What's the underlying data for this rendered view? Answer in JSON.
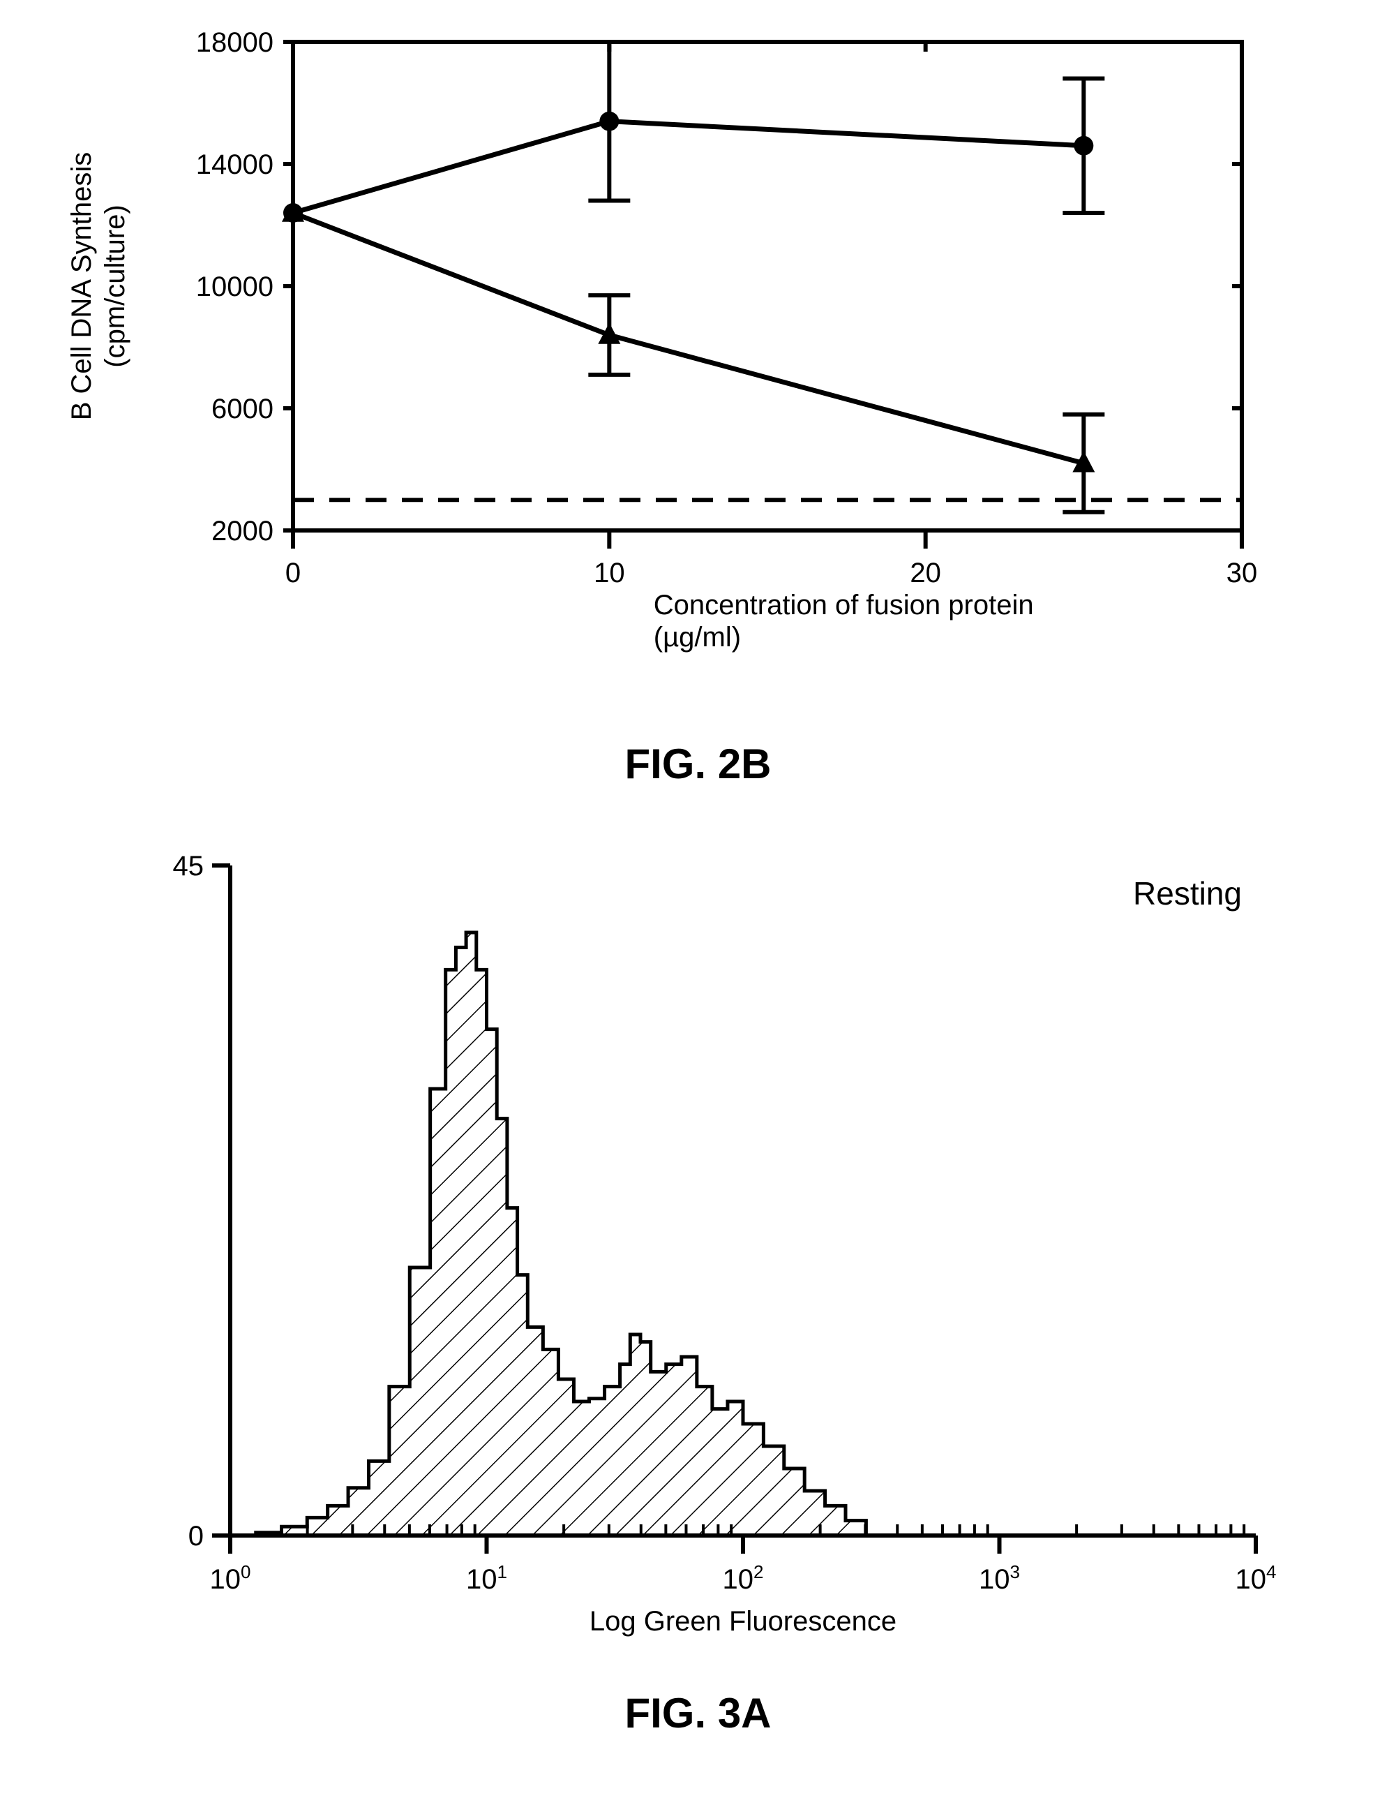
{
  "fig2b": {
    "type": "line-errorbar",
    "title": "FIG. 2B",
    "title_fontsize": 60,
    "title_fontweight": 700,
    "xlabel_line1": "Concentration of fusion protein",
    "xlabel_line2": "(µg/ml)",
    "ylabel_line1": "B Cell DNA Synthesis",
    "ylabel_line2": "(cpm/culture)",
    "label_fontsize": 40,
    "tick_fontsize": 40,
    "axis_color": "#000000",
    "axis_width": 6,
    "tick_len_major": 26,
    "tick_len_small": 14,
    "xlim": [
      0,
      30
    ],
    "ylim": [
      2000,
      18000
    ],
    "xticks": [
      0,
      10,
      20,
      30
    ],
    "yticks_major": [
      2000,
      6000,
      10000,
      14000,
      18000
    ],
    "yticks_label_only": [
      6000,
      10000,
      14000,
      18000
    ],
    "dashed_ref_y": 3000,
    "dashed_dash": "30 22",
    "dashed_width": 6,
    "line_width": 7,
    "line_color": "#000000",
    "series_circle": {
      "marker": "circle",
      "marker_size": 14,
      "points": [
        {
          "x": 0,
          "y": 12400,
          "err": 0
        },
        {
          "x": 10,
          "y": 15400,
          "err": 2600
        },
        {
          "x": 25,
          "y": 14600,
          "err": 2200
        }
      ]
    },
    "series_triangle": {
      "marker": "triangle",
      "marker_size": 16,
      "points": [
        {
          "x": 0,
          "y": 12400,
          "err": 0
        },
        {
          "x": 10,
          "y": 8400,
          "err": 1300
        },
        {
          "x": 25,
          "y": 4200,
          "err": 1600
        }
      ]
    },
    "errorbar_cap": 30,
    "errorbar_width": 6
  },
  "fig3a": {
    "type": "histogram-log-x",
    "title": "FIG. 3A",
    "title_fontsize": 60,
    "title_fontweight": 700,
    "panel_label": "Resting",
    "panel_label_fontsize": 46,
    "xlabel": "Log Green Fluorescence",
    "label_fontsize": 40,
    "tick_fontsize": 40,
    "axis_color": "#000000",
    "axis_width": 6,
    "ylim": [
      0,
      45
    ],
    "yticks": [
      0,
      45
    ],
    "x_decades": [
      0,
      1,
      2,
      3,
      4
    ],
    "xticks_label_prefix": "10",
    "log_minor_ticks": [
      2,
      3,
      4,
      5,
      6,
      7,
      8,
      9
    ],
    "tick_len_major": 26,
    "tick_len_minor_in": 16,
    "hatch_spacing": 28,
    "hatch_width": 3,
    "hatch_color": "#000000",
    "outline_width": 5,
    "bars": [
      {
        "logx": 0.0,
        "h": 0.0
      },
      {
        "logx": 0.1,
        "h": 0.2
      },
      {
        "logx": 0.2,
        "h": 0.6
      },
      {
        "logx": 0.3,
        "h": 1.2
      },
      {
        "logx": 0.38,
        "h": 2.0
      },
      {
        "logx": 0.46,
        "h": 3.2
      },
      {
        "logx": 0.54,
        "h": 5.0
      },
      {
        "logx": 0.62,
        "h": 10.0
      },
      {
        "logx": 0.7,
        "h": 18.0
      },
      {
        "logx": 0.78,
        "h": 30.0
      },
      {
        "logx": 0.84,
        "h": 38.0
      },
      {
        "logx": 0.88,
        "h": 39.5
      },
      {
        "logx": 0.92,
        "h": 40.5
      },
      {
        "logx": 0.96,
        "h": 38.0
      },
      {
        "logx": 1.0,
        "h": 34.0
      },
      {
        "logx": 1.04,
        "h": 28.0
      },
      {
        "logx": 1.08,
        "h": 22.0
      },
      {
        "logx": 1.12,
        "h": 17.5
      },
      {
        "logx": 1.16,
        "h": 14.0
      },
      {
        "logx": 1.22,
        "h": 12.5
      },
      {
        "logx": 1.28,
        "h": 10.5
      },
      {
        "logx": 1.34,
        "h": 9.0
      },
      {
        "logx": 1.4,
        "h": 9.2
      },
      {
        "logx": 1.46,
        "h": 10.0
      },
      {
        "logx": 1.52,
        "h": 11.5
      },
      {
        "logx": 1.56,
        "h": 13.5
      },
      {
        "logx": 1.6,
        "h": 13.0
      },
      {
        "logx": 1.64,
        "h": 11.0
      },
      {
        "logx": 1.7,
        "h": 11.5
      },
      {
        "logx": 1.76,
        "h": 12.0
      },
      {
        "logx": 1.82,
        "h": 10.0
      },
      {
        "logx": 1.88,
        "h": 8.5
      },
      {
        "logx": 1.94,
        "h": 9.0
      },
      {
        "logx": 2.0,
        "h": 7.5
      },
      {
        "logx": 2.08,
        "h": 6.0
      },
      {
        "logx": 2.16,
        "h": 4.5
      },
      {
        "logx": 2.24,
        "h": 3.0
      },
      {
        "logx": 2.32,
        "h": 2.0
      },
      {
        "logx": 2.4,
        "h": 1.0
      },
      {
        "logx": 2.48,
        "h": 0.0
      }
    ]
  }
}
